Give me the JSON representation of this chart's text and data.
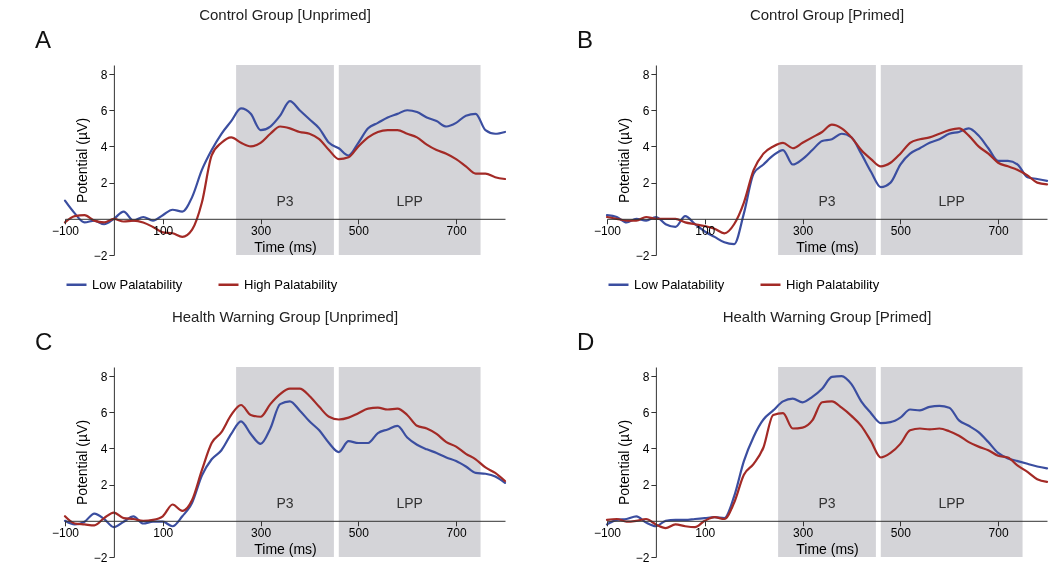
{
  "chart_data": [
    {
      "type": "line",
      "title": "Control Group [Unprimed]",
      "xlabel": "Time (ms)",
      "ylabel": "Potential (µV)",
      "annotations": [
        "A"
      ],
      "legend": "bottom",
      "x": [
        -100,
        -80,
        -60,
        -40,
        -20,
        0,
        20,
        40,
        60,
        80,
        100,
        120,
        140,
        160,
        180,
        200,
        220,
        240,
        260,
        280,
        300,
        320,
        340,
        360,
        380,
        400,
        420,
        440,
        460,
        480,
        500,
        520,
        540,
        560,
        580,
        600,
        620,
        640,
        660,
        680,
        700,
        720,
        740,
        760,
        780,
        800
      ],
      "xlim": [
        -100,
        800
      ],
      "xticks": [
        -100,
        100,
        300,
        500,
        700
      ],
      "ylim": [
        -2,
        8.5
      ],
      "yticks": [
        -2,
        2,
        4,
        6,
        8
      ],
      "bands": [
        {
          "axis": "x",
          "from": 250,
          "to": 450,
          "label": "P3",
          "color": "#d4d4d8"
        },
        {
          "axis": "x",
          "from": 460,
          "to": 750,
          "label": "LPP",
          "color": "#d4d4d8"
        }
      ],
      "series": [
        {
          "name": "Low Palatability",
          "color": "#3b4ea0",
          "values": [
            1.0,
            0.3,
            -0.2,
            -0.1,
            -0.3,
            0,
            0.4,
            -0.1,
            0.1,
            -0.1,
            0.2,
            0.5,
            0.4,
            1.2,
            2.7,
            3.8,
            4.7,
            5.4,
            6.1,
            5.8,
            4.9,
            5.1,
            5.7,
            6.5,
            6.0,
            5.5,
            5.0,
            4.2,
            3.9,
            3.5,
            4.2,
            5.0,
            5.3,
            5.6,
            5.8,
            6.0,
            5.9,
            5.6,
            5.4,
            5.1,
            5.3,
            5.7,
            5.8,
            4.9,
            4.7,
            4.8
          ]
        },
        {
          "name": "High Palatability",
          "color": "#a32a26",
          "values": [
            -0.2,
            0.15,
            0.2,
            -0.1,
            -0.2,
            0,
            -0.15,
            -0.1,
            -0.2,
            -0.45,
            -0.75,
            -0.8,
            -1.0,
            -0.6,
            0.9,
            3.5,
            4.2,
            4.5,
            4.2,
            4.0,
            4.2,
            4.7,
            5.1,
            5.0,
            4.8,
            4.7,
            4.4,
            3.8,
            3.3,
            3.4,
            4.0,
            4.5,
            4.8,
            4.9,
            4.9,
            4.7,
            4.5,
            4.1,
            3.8,
            3.6,
            3.3,
            2.9,
            2.5,
            2.5,
            2.3,
            2.2
          ]
        }
      ]
    },
    {
      "type": "line",
      "title": "Control Group [Primed]",
      "xlabel": "Time (ms)",
      "ylabel": "Potential (µV)",
      "annotations": [
        "B"
      ],
      "legend": "bottom",
      "x": [
        -100,
        -80,
        -60,
        -40,
        -20,
        0,
        20,
        40,
        60,
        80,
        100,
        120,
        140,
        160,
        180,
        200,
        220,
        240,
        260,
        280,
        300,
        320,
        340,
        360,
        380,
        400,
        420,
        440,
        460,
        480,
        500,
        520,
        540,
        560,
        580,
        600,
        620,
        640,
        660,
        680,
        700,
        720,
        740,
        760,
        780,
        800
      ],
      "xlim": [
        -100,
        800
      ],
      "xticks": [
        -100,
        100,
        300,
        500,
        700
      ],
      "ylim": [
        -2,
        8.5
      ],
      "yticks": [
        -2,
        2,
        4,
        6,
        8
      ],
      "bands": [
        {
          "axis": "x",
          "from": 250,
          "to": 450,
          "label": "P3",
          "color": "#d4d4d8"
        },
        {
          "axis": "x",
          "from": 460,
          "to": 750,
          "label": "LPP",
          "color": "#d4d4d8"
        }
      ],
      "series": [
        {
          "name": "Low Palatability",
          "color": "#3b4ea0",
          "values": [
            0.2,
            0.1,
            -0.2,
            0,
            -0.1,
            0.1,
            -0.3,
            -0.45,
            0.15,
            -0.3,
            -0.7,
            -1.0,
            -1.3,
            -1.4,
            0.3,
            2.5,
            3.0,
            3.5,
            3.8,
            3.0,
            3.3,
            3.8,
            4.3,
            4.4,
            4.7,
            4.5,
            3.6,
            2.6,
            1.75,
            2.0,
            3.0,
            3.6,
            3.9,
            4.2,
            4.4,
            4.7,
            4.8,
            5.0,
            4.6,
            3.9,
            3.2,
            3.2,
            3.0,
            2.3,
            2.2,
            2.1
          ]
        },
        {
          "name": "High Palatability",
          "color": "#a32a26",
          "values": [
            0.1,
            0,
            -0.1,
            -0.1,
            0.1,
            0,
            0,
            0,
            -0.2,
            -0.3,
            -0.4,
            -0.55,
            -0.8,
            -0.3,
            0.9,
            2.7,
            3.6,
            4.0,
            4.2,
            3.9,
            4.2,
            4.5,
            4.8,
            5.2,
            5.0,
            4.5,
            3.8,
            3.3,
            2.9,
            3.1,
            3.6,
            4.2,
            4.4,
            4.5,
            4.7,
            4.9,
            5.0,
            4.6,
            4.0,
            3.6,
            3.1,
            2.9,
            2.7,
            2.4,
            2.0,
            1.9
          ]
        }
      ]
    },
    {
      "type": "line",
      "title": "Health Warning Group [Unprimed]",
      "xlabel": "Time (ms)",
      "ylabel": "Potential (µV)",
      "annotations": [
        "C"
      ],
      "x": [
        -100,
        -80,
        -60,
        -40,
        -20,
        0,
        20,
        40,
        60,
        80,
        100,
        120,
        140,
        160,
        180,
        200,
        220,
        240,
        260,
        280,
        300,
        320,
        340,
        360,
        380,
        400,
        420,
        440,
        460,
        480,
        500,
        520,
        540,
        560,
        580,
        600,
        620,
        640,
        660,
        680,
        700,
        720,
        740,
        760,
        780,
        800
      ],
      "xlim": [
        -100,
        800
      ],
      "xticks": [
        -100,
        100,
        300,
        500,
        700
      ],
      "ylim": [
        -2,
        8.5
      ],
      "yticks": [
        -2,
        2,
        4,
        6,
        8
      ],
      "bands": [
        {
          "axis": "x",
          "from": 250,
          "to": 450,
          "label": "P3",
          "color": "#d4d4d8"
        },
        {
          "axis": "x",
          "from": 460,
          "to": 750,
          "label": "LPP",
          "color": "#d4d4d8"
        }
      ],
      "series": [
        {
          "color": "#3b4ea0",
          "values": [
            0,
            -0.2,
            -0.05,
            0.4,
            0.1,
            -0.35,
            -0.05,
            0.25,
            -0.15,
            -0.05,
            -0.05,
            -0.3,
            0.25,
            1.0,
            2.5,
            3.4,
            3.9,
            4.8,
            5.5,
            4.8,
            4.25,
            5.1,
            6.45,
            6.6,
            6.1,
            5.5,
            5.0,
            4.3,
            3.8,
            4.4,
            4.3,
            4.3,
            4.85,
            5.05,
            5.25,
            4.6,
            4.2,
            3.95,
            3.75,
            3.5,
            3.3,
            3.0,
            2.65,
            2.6,
            2.45,
            2.1
          ]
        },
        {
          "color": "#a32a26",
          "values": [
            0.25,
            -0.15,
            -0.2,
            -0.25,
            0.15,
            0.45,
            0.15,
            0.1,
            0,
            0.05,
            0.25,
            0.9,
            0.55,
            1.15,
            2.8,
            4.3,
            4.9,
            5.85,
            6.4,
            5.85,
            5.75,
            6.45,
            7.0,
            7.3,
            7.3,
            6.9,
            6.3,
            5.75,
            5.6,
            5.7,
            5.95,
            6.2,
            6.25,
            6.15,
            6.2,
            5.85,
            5.25,
            5.1,
            4.8,
            4.35,
            4.1,
            3.7,
            3.4,
            2.95,
            2.65,
            2.2
          ]
        }
      ]
    },
    {
      "type": "line",
      "title": "Health Warning Group [Primed]",
      "xlabel": "Time (ms)",
      "ylabel": "Potential (µV)",
      "annotations": [
        "D"
      ],
      "x": [
        -100,
        -80,
        -60,
        -40,
        -20,
        0,
        20,
        40,
        60,
        80,
        100,
        120,
        140,
        160,
        180,
        200,
        220,
        240,
        260,
        280,
        300,
        320,
        340,
        360,
        380,
        400,
        420,
        440,
        460,
        480,
        500,
        520,
        540,
        560,
        580,
        600,
        620,
        640,
        660,
        680,
        700,
        720,
        740,
        760,
        780,
        800
      ],
      "xlim": [
        -100,
        800
      ],
      "xticks": [
        -100,
        100,
        300,
        500,
        700
      ],
      "ylim": [
        -2,
        8.5
      ],
      "yticks": [
        -2,
        2,
        4,
        6,
        8
      ],
      "bands": [
        {
          "axis": "x",
          "from": 250,
          "to": 450,
          "label": "P3",
          "color": "#d4d4d8"
        },
        {
          "axis": "x",
          "from": 460,
          "to": 750,
          "label": "LPP",
          "color": "#d4d4d8"
        }
      ],
      "series": [
        {
          "color": "#3b4ea0",
          "values": [
            -0.2,
            0.05,
            0.1,
            0.25,
            -0.1,
            -0.3,
            0,
            0.05,
            0.05,
            0.1,
            0.15,
            0.2,
            0.15,
            1.35,
            3.3,
            4.65,
            5.6,
            6.1,
            6.6,
            6.75,
            6.55,
            6.85,
            7.3,
            7.95,
            8.0,
            7.55,
            6.6,
            5.95,
            5.4,
            5.45,
            5.7,
            6.15,
            6.1,
            6.3,
            6.35,
            6.25,
            5.55,
            5.25,
            4.9,
            4.35,
            3.75,
            3.45,
            3.3,
            3.15,
            3.0,
            2.9
          ]
        },
        {
          "color": "#a32a26",
          "values": [
            0.05,
            0.1,
            -0.05,
            0,
            0.1,
            -0.2,
            -0.4,
            -0.2,
            -0.3,
            -0.35,
            0,
            0.2,
            0.1,
            1.0,
            2.55,
            3.15,
            4.05,
            5.85,
            5.95,
            5.1,
            5.15,
            5.55,
            6.55,
            6.6,
            6.25,
            5.8,
            5.25,
            4.4,
            3.5,
            3.75,
            4.25,
            5.0,
            5.1,
            5.05,
            5.1,
            4.95,
            4.7,
            4.35,
            4.1,
            3.9,
            3.6,
            3.5,
            3.05,
            2.7,
            2.3,
            2.15
          ]
        }
      ]
    }
  ]
}
